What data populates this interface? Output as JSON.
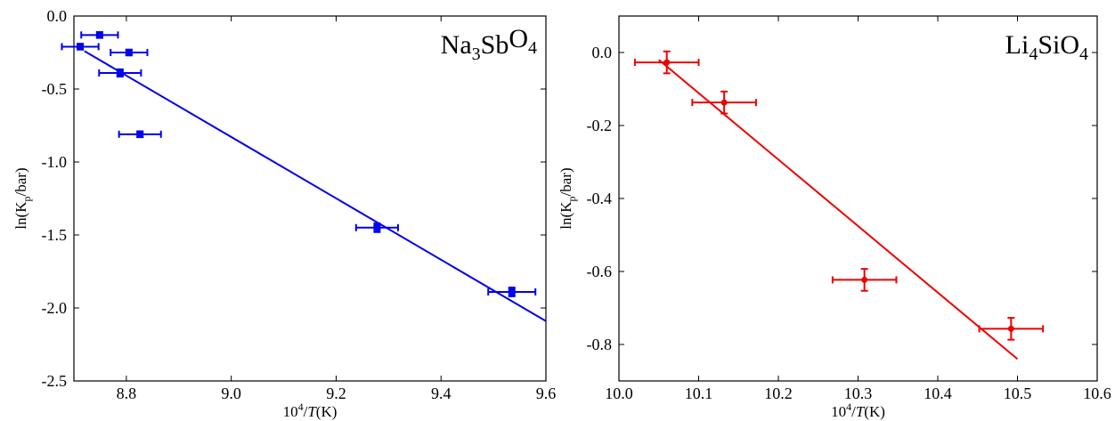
{
  "chart_data": [
    {
      "type": "scatter",
      "title_base": [
        "Na",
        "Sb",
        "O"
      ],
      "title_sub": [
        "3",
        "",
        "4"
      ],
      "xlabel": {
        "pre": "10",
        "sup": "4",
        "mid": "/",
        "ital": "T",
        "post": "(K)"
      },
      "ylabel": {
        "pre": "ln(K",
        "sub": "p",
        "post": "/bar)"
      },
      "xlim": [
        8.7,
        9.6
      ],
      "ylim": [
        -2.5,
        0.0
      ],
      "xticks": [
        8.8,
        9.0,
        9.2,
        9.4,
        9.6
      ],
      "xtick_labels": [
        "8.8",
        "9.0",
        "9.2",
        "9.4",
        "9.6"
      ],
      "yticks": [
        0.0,
        -0.5,
        -1.0,
        -1.5,
        -2.0,
        -2.5
      ],
      "ytick_labels": [
        "0.0",
        "-0.5",
        "-1.0",
        "-1.5",
        "-2.0",
        "-2.5"
      ],
      "color": "#0000ee",
      "marker": "square",
      "points": [
        {
          "x": 8.712,
          "y": -0.21,
          "xerr": 0.035,
          "yerr": 0.02
        },
        {
          "x": 8.749,
          "y": -0.13,
          "xerr": 0.035,
          "yerr": 0.02
        },
        {
          "x": 8.805,
          "y": -0.25,
          "xerr": 0.035,
          "yerr": 0.02
        },
        {
          "x": 8.788,
          "y": -0.39,
          "xerr": 0.04,
          "yerr": 0.025
        },
        {
          "x": 8.826,
          "y": -0.81,
          "xerr": 0.04,
          "yerr": 0.02
        },
        {
          "x": 9.278,
          "y": -1.45,
          "xerr": 0.04,
          "yerr": 0.03
        },
        {
          "x": 9.535,
          "y": -1.89,
          "xerr": 0.045,
          "yerr": 0.03
        }
      ],
      "fit_line": {
        "x": [
          8.72,
          9.6
        ],
        "y": [
          -0.24,
          -2.09
        ]
      }
    },
    {
      "type": "scatter",
      "title_base": [
        "Li",
        "SiO"
      ],
      "title_sub": [
        "4",
        "4"
      ],
      "xlabel": {
        "pre": "10",
        "sup": "4",
        "mid": "/",
        "ital": "T",
        "post": "(K)"
      },
      "ylabel": {
        "pre": "ln(K",
        "sub": "p",
        "post": "/bar)"
      },
      "xlim": [
        10.0,
        10.6
      ],
      "ylim": [
        -0.9,
        0.1
      ],
      "xticks": [
        10.0,
        10.1,
        10.2,
        10.3,
        10.4,
        10.5,
        10.6
      ],
      "xtick_labels": [
        "10.0",
        "10.1",
        "10.2",
        "10.3",
        "10.4",
        "10.5",
        "10.6"
      ],
      "yticks": [
        0.0,
        -0.2,
        -0.4,
        -0.6,
        -0.8
      ],
      "ytick_labels": [
        "0.0",
        "-0.2",
        "-0.4",
        "-0.6",
        "-0.8"
      ],
      "color": "#ee0000",
      "marker": "circle",
      "points": [
        {
          "x": 10.06,
          "y": -0.027,
          "xerr": 0.04,
          "yerr": 0.03
        },
        {
          "x": 10.132,
          "y": -0.137,
          "xerr": 0.04,
          "yerr": 0.03
        },
        {
          "x": 10.308,
          "y": -0.623,
          "xerr": 0.04,
          "yerr": 0.03
        },
        {
          "x": 10.492,
          "y": -0.757,
          "xerr": 0.04,
          "yerr": 0.03
        }
      ],
      "fit_line": {
        "x": [
          10.05,
          10.5
        ],
        "y": [
          -0.02,
          -0.84
        ]
      }
    }
  ]
}
